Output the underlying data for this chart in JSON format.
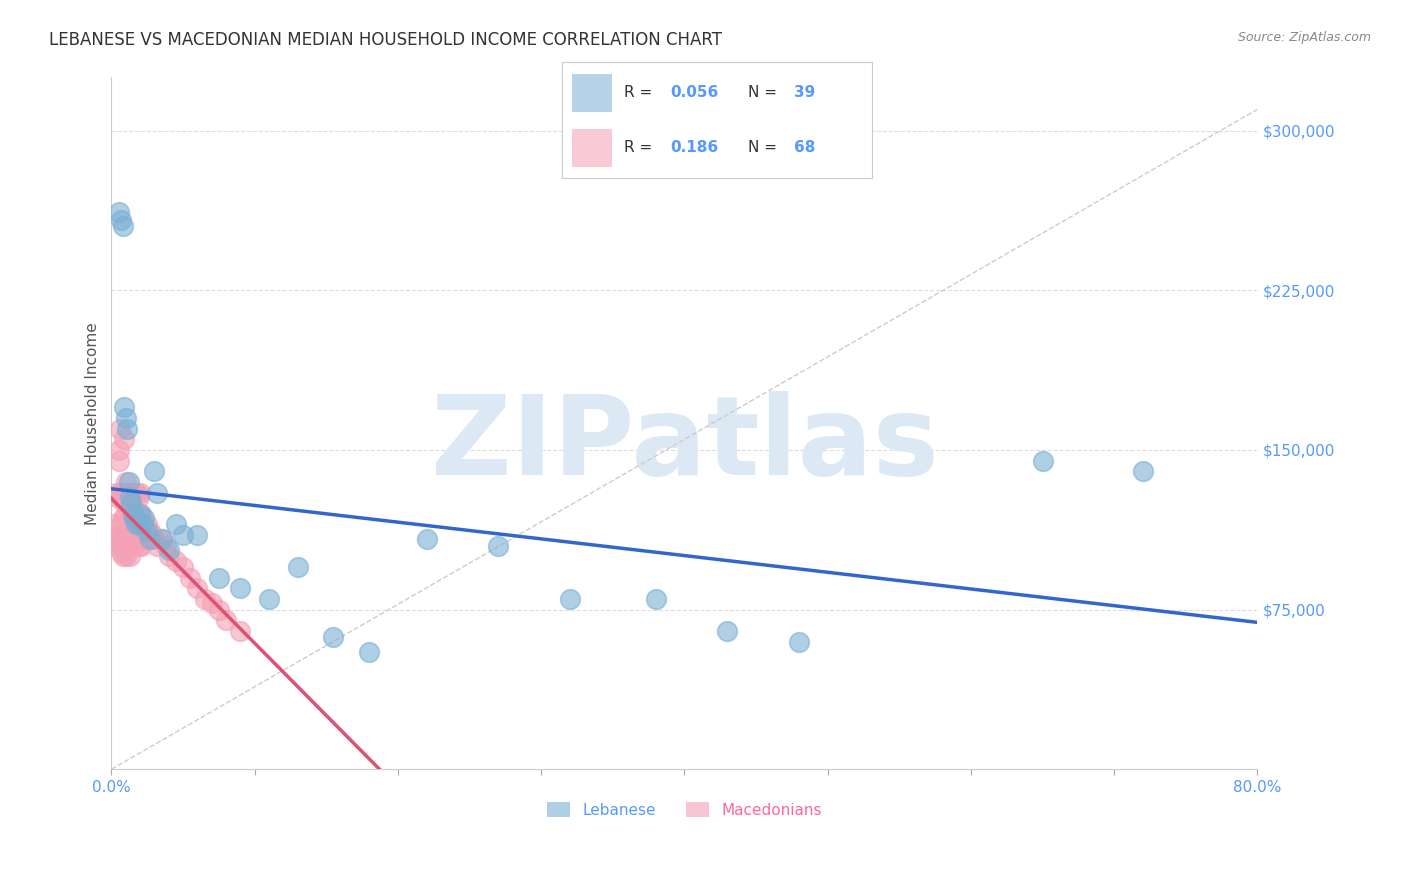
{
  "title": "LEBANESE VS MACEDONIAN MEDIAN HOUSEHOLD INCOME CORRELATION CHART",
  "source": "Source: ZipAtlas.com",
  "ylabel": "Median Household Income",
  "watermark": "ZIPatlas",
  "xlim": [
    0.0,
    0.8
  ],
  "ylim": [
    0,
    325000
  ],
  "xticks": [
    0.0,
    0.1,
    0.2,
    0.3,
    0.4,
    0.5,
    0.6,
    0.7,
    0.8
  ],
  "xtick_labels": [
    "0.0%",
    "",
    "",
    "",
    "",
    "",
    "",
    "",
    "80.0%"
  ],
  "ytick_right": [
    75000,
    150000,
    225000,
    300000
  ],
  "ytick_right_labels": [
    "$75,000",
    "$150,000",
    "$225,000",
    "$300,000"
  ],
  "lebanese_color": "#7BAFD4",
  "macedonian_color": "#F4A0B5",
  "lebanese_R": 0.056,
  "lebanese_N": 39,
  "macedonian_R": 0.186,
  "macedonian_N": 68,
  "legend_lebanese": "Lebanese",
  "legend_macedonian": "Macedonians",
  "lebanese_x": [
    0.005,
    0.007,
    0.008,
    0.009,
    0.01,
    0.011,
    0.012,
    0.013,
    0.014,
    0.015,
    0.016,
    0.017,
    0.019,
    0.02,
    0.022,
    0.023,
    0.025,
    0.027,
    0.03,
    0.032,
    0.035,
    0.04,
    0.045,
    0.05,
    0.06,
    0.075,
    0.09,
    0.11,
    0.13,
    0.155,
    0.18,
    0.22,
    0.27,
    0.32,
    0.38,
    0.43,
    0.48,
    0.65,
    0.72
  ],
  "lebanese_y": [
    262000,
    258000,
    255000,
    170000,
    165000,
    160000,
    135000,
    128000,
    125000,
    120000,
    118000,
    115000,
    115000,
    120000,
    115000,
    118000,
    112000,
    108000,
    140000,
    130000,
    108000,
    103000,
    115000,
    110000,
    110000,
    90000,
    85000,
    80000,
    95000,
    62000,
    55000,
    108000,
    105000,
    80000,
    80000,
    65000,
    60000,
    145000,
    140000
  ],
  "macedonian_x": [
    0.002,
    0.003,
    0.003,
    0.004,
    0.004,
    0.005,
    0.005,
    0.005,
    0.006,
    0.006,
    0.006,
    0.007,
    0.007,
    0.007,
    0.008,
    0.008,
    0.008,
    0.009,
    0.009,
    0.009,
    0.01,
    0.01,
    0.01,
    0.01,
    0.011,
    0.011,
    0.012,
    0.012,
    0.013,
    0.013,
    0.013,
    0.014,
    0.014,
    0.015,
    0.015,
    0.016,
    0.016,
    0.017,
    0.017,
    0.018,
    0.018,
    0.019,
    0.019,
    0.02,
    0.02,
    0.021,
    0.021,
    0.022,
    0.023,
    0.024,
    0.025,
    0.026,
    0.027,
    0.028,
    0.03,
    0.032,
    0.035,
    0.038,
    0.04,
    0.045,
    0.05,
    0.055,
    0.06,
    0.065,
    0.07,
    0.075,
    0.08,
    0.09
  ],
  "macedonian_y": [
    115000,
    130000,
    108000,
    128000,
    105000,
    150000,
    145000,
    110000,
    160000,
    130000,
    105000,
    128000,
    115000,
    102000,
    130000,
    118000,
    100000,
    155000,
    125000,
    110000,
    135000,
    120000,
    110000,
    100000,
    130000,
    105000,
    125000,
    108000,
    130000,
    112000,
    100000,
    125000,
    108000,
    130000,
    110000,
    120000,
    105000,
    130000,
    108000,
    130000,
    108000,
    128000,
    105000,
    130000,
    108000,
    120000,
    105000,
    115000,
    110000,
    108000,
    115000,
    108000,
    112000,
    110000,
    108000,
    105000,
    108000,
    105000,
    100000,
    98000,
    95000,
    90000,
    85000,
    80000,
    78000,
    75000,
    70000,
    65000
  ],
  "dashed_line_color": "#CCCCCC",
  "trend_blue_color": "#3366CC",
  "trend_pink_color": "#E05070",
  "background_color": "#FFFFFF",
  "grid_color": "#DDDDDD",
  "title_color": "#333333",
  "axis_color": "#5599FF",
  "watermark_color": "#DDE8F5"
}
